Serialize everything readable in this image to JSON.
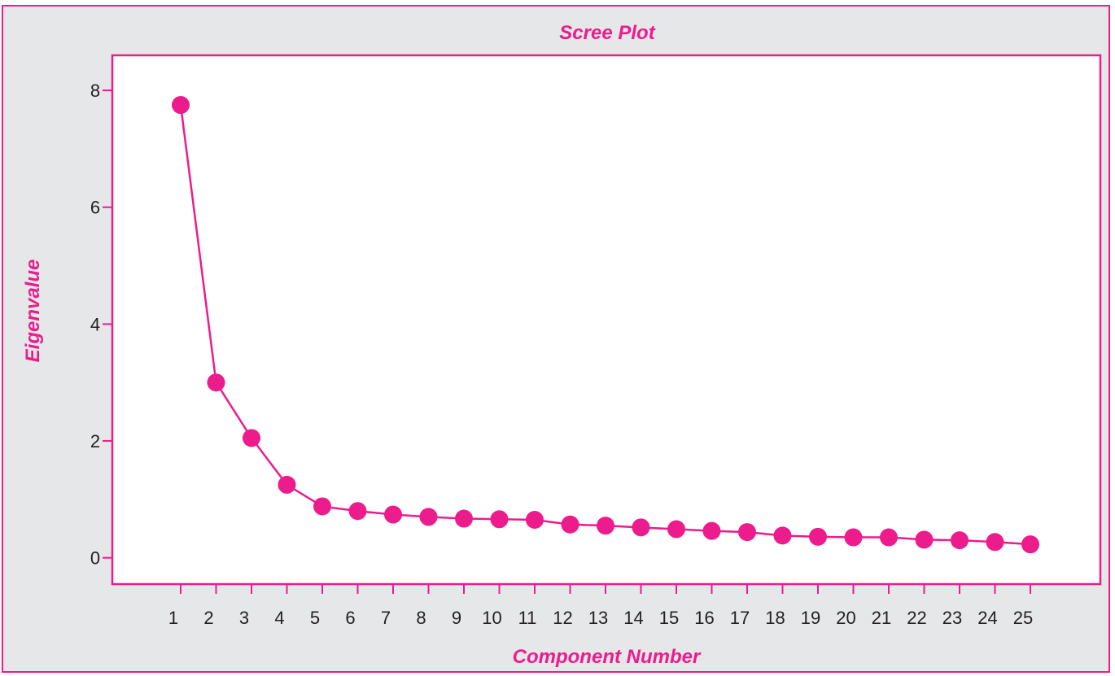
{
  "colors": {
    "accent": "#ec1c8c",
    "panel_background": "#e6e7e9",
    "plot_background": "#ffffff",
    "tick_text": "#231f20"
  },
  "chart_data": {
    "type": "line",
    "title": "Scree Plot",
    "xlabel": "Component Number",
    "ylabel": "Eigenvalue",
    "x": [
      1,
      2,
      3,
      4,
      5,
      6,
      7,
      8,
      9,
      10,
      11,
      12,
      13,
      14,
      15,
      16,
      17,
      18,
      19,
      20,
      21,
      22,
      23,
      24,
      25
    ],
    "series": [
      {
        "values": [
          7.75,
          3.0,
          2.05,
          1.25,
          0.88,
          0.8,
          0.74,
          0.7,
          0.67,
          0.66,
          0.65,
          0.57,
          0.55,
          0.52,
          0.49,
          0.46,
          0.44,
          0.38,
          0.36,
          0.35,
          0.35,
          0.31,
          0.3,
          0.27,
          0.23
        ]
      }
    ],
    "ylim": [
      -0.45,
      8.6
    ],
    "yticks": [
      0,
      2,
      4,
      6,
      8
    ],
    "xticks": [
      "1",
      "2",
      "3",
      "4",
      "5",
      "6",
      "7",
      "8",
      "9",
      "10",
      "11",
      "12",
      "13",
      "14",
      "15",
      "16",
      "17",
      "18",
      "19",
      "20",
      "21",
      "22",
      "23",
      "24",
      "25"
    ],
    "grid": false,
    "legend": "none",
    "markers": "filled circles"
  }
}
